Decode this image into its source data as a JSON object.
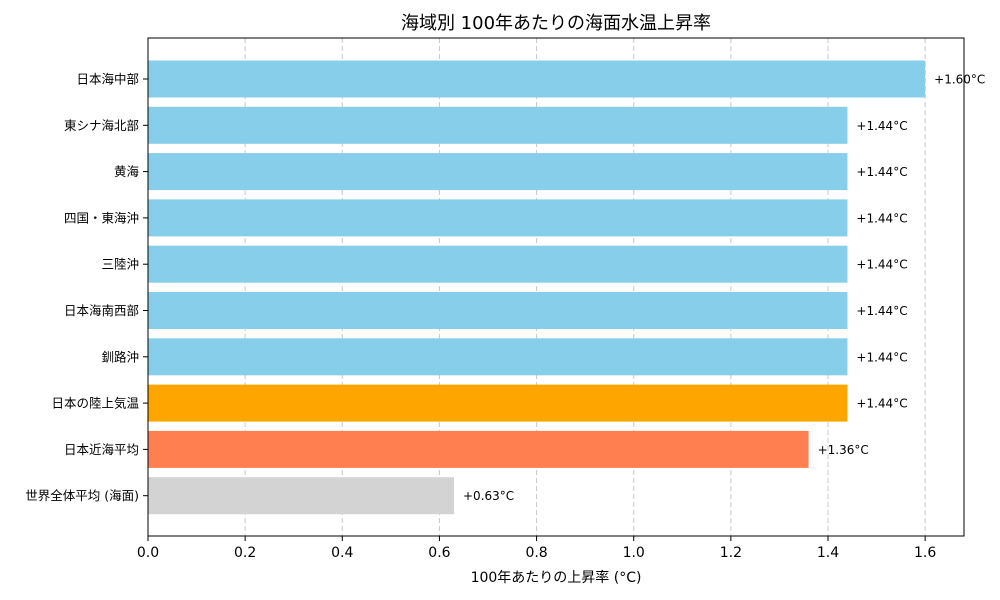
{
  "chart_data": {
    "type": "bar",
    "orientation": "horizontal",
    "title": "海域別 100年あたりの海面水温上昇率",
    "xlabel": "100年あたりの上昇率 (°C)",
    "ylabel": "",
    "xlim": [
      0,
      1.68
    ],
    "xticks": [
      "0.0",
      "0.2",
      "0.4",
      "0.6",
      "0.8",
      "1.0",
      "1.2",
      "1.4",
      "1.6"
    ],
    "grid": "x-dashed",
    "categories": [
      "日本海中部",
      "東シナ海北部",
      "黄海",
      "四国・東海沖",
      "三陸沖",
      "日本海南西部",
      "釧路沖",
      "日本の陸上気温",
      "日本近海平均",
      "世界全体平均 (海面)"
    ],
    "values": [
      1.6,
      1.44,
      1.44,
      1.44,
      1.44,
      1.44,
      1.44,
      1.44,
      1.36,
      0.63
    ],
    "value_labels": [
      "+1.60°C",
      "+1.44°C",
      "+1.44°C",
      "+1.44°C",
      "+1.44°C",
      "+1.44°C",
      "+1.44°C",
      "+1.44°C",
      "+1.36°C",
      "+0.63°C"
    ],
    "colors": [
      "#87CEEB",
      "#87CEEB",
      "#87CEEB",
      "#87CEEB",
      "#87CEEB",
      "#87CEEB",
      "#87CEEB",
      "#FFA500",
      "#FF7F50",
      "#D3D3D3"
    ]
  }
}
